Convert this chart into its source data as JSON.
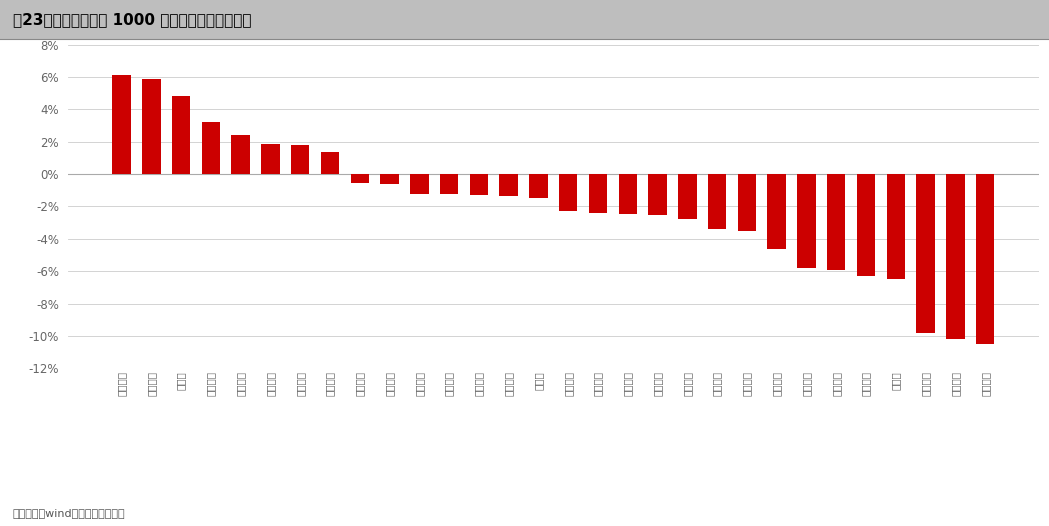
{
  "title": "图23：民生金工中证 1000 选股组合上周持仓收益",
  "categories": [
    "新华文轩",
    "广深铁路",
    "珍宝岛",
    "沃尔核材",
    "华峰铝业",
    "中国国贸",
    "国药现代",
    "康弘药业",
    "陕建股份",
    "金禾实业",
    "渤海租货",
    "久立特材",
    "宝钛股份",
    "汉缆股份",
    "中信博",
    "海南矿业",
    "冀华能源",
    "淮河能源",
    "安集科技",
    "爱博医疗",
    "沪光股份",
    "中国汽研",
    "神州信息",
    "中炬高新",
    "虹软科技",
    "丸美股份",
    "森麒麟",
    "海信家电",
    "开立医疗",
    "万业企业"
  ],
  "values": [
    6.1,
    5.9,
    4.8,
    3.2,
    2.4,
    1.85,
    1.8,
    1.35,
    -0.55,
    -0.6,
    -1.2,
    -1.25,
    -1.3,
    -1.35,
    -1.45,
    -2.3,
    -2.4,
    -2.45,
    -2.55,
    -2.8,
    -3.4,
    -3.5,
    -4.6,
    -5.8,
    -5.9,
    -6.3,
    -6.5,
    -9.8,
    -10.2,
    -10.5
  ],
  "bar_color": "#CC0000",
  "background_color": "#FFFFFF",
  "ylim": [
    -12,
    8
  ],
  "yticks": [
    -12,
    -10,
    -8,
    -6,
    -4,
    -2,
    0,
    2,
    4,
    6,
    8
  ],
  "source_text": "资料来源：wind，民生证券研究院",
  "title_bg_color": "#BEBEBE",
  "title_text_color": "#000000",
  "grid_color": "#CCCCCC",
  "zero_line_color": "#AAAAAA",
  "tick_color": "#666666"
}
